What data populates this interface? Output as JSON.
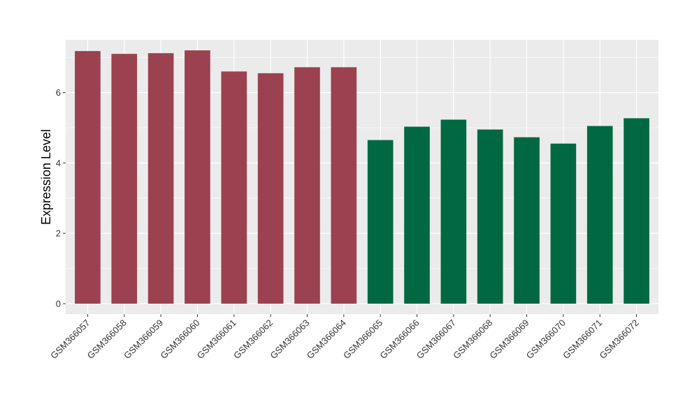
{
  "chart_data": {
    "type": "bar",
    "title": "",
    "xlabel": "",
    "ylabel": "Expression Level",
    "ylim": [
      -0.3,
      7.5
    ],
    "yticks": [
      0,
      2,
      4,
      6
    ],
    "grid": true,
    "categories": [
      "GSM366057",
      "GSM366058",
      "GSM366059",
      "GSM366060",
      "GSM366061",
      "GSM366062",
      "GSM366063",
      "GSM366064",
      "GSM366065",
      "GSM366066",
      "GSM366067",
      "GSM366068",
      "GSM366069",
      "GSM366070",
      "GSM366071",
      "GSM366072"
    ],
    "values": [
      7.18,
      7.1,
      7.12,
      7.2,
      6.6,
      6.55,
      6.72,
      6.72,
      4.65,
      5.03,
      5.23,
      4.95,
      4.73,
      4.55,
      5.05,
      5.27
    ],
    "groups": [
      0,
      0,
      0,
      0,
      0,
      0,
      0,
      0,
      1,
      1,
      1,
      1,
      1,
      1,
      1,
      1
    ],
    "colors": [
      "#9b4150",
      "#006843"
    ],
    "panel_background": "#ebebeb",
    "grid_color": "#ffffff"
  }
}
